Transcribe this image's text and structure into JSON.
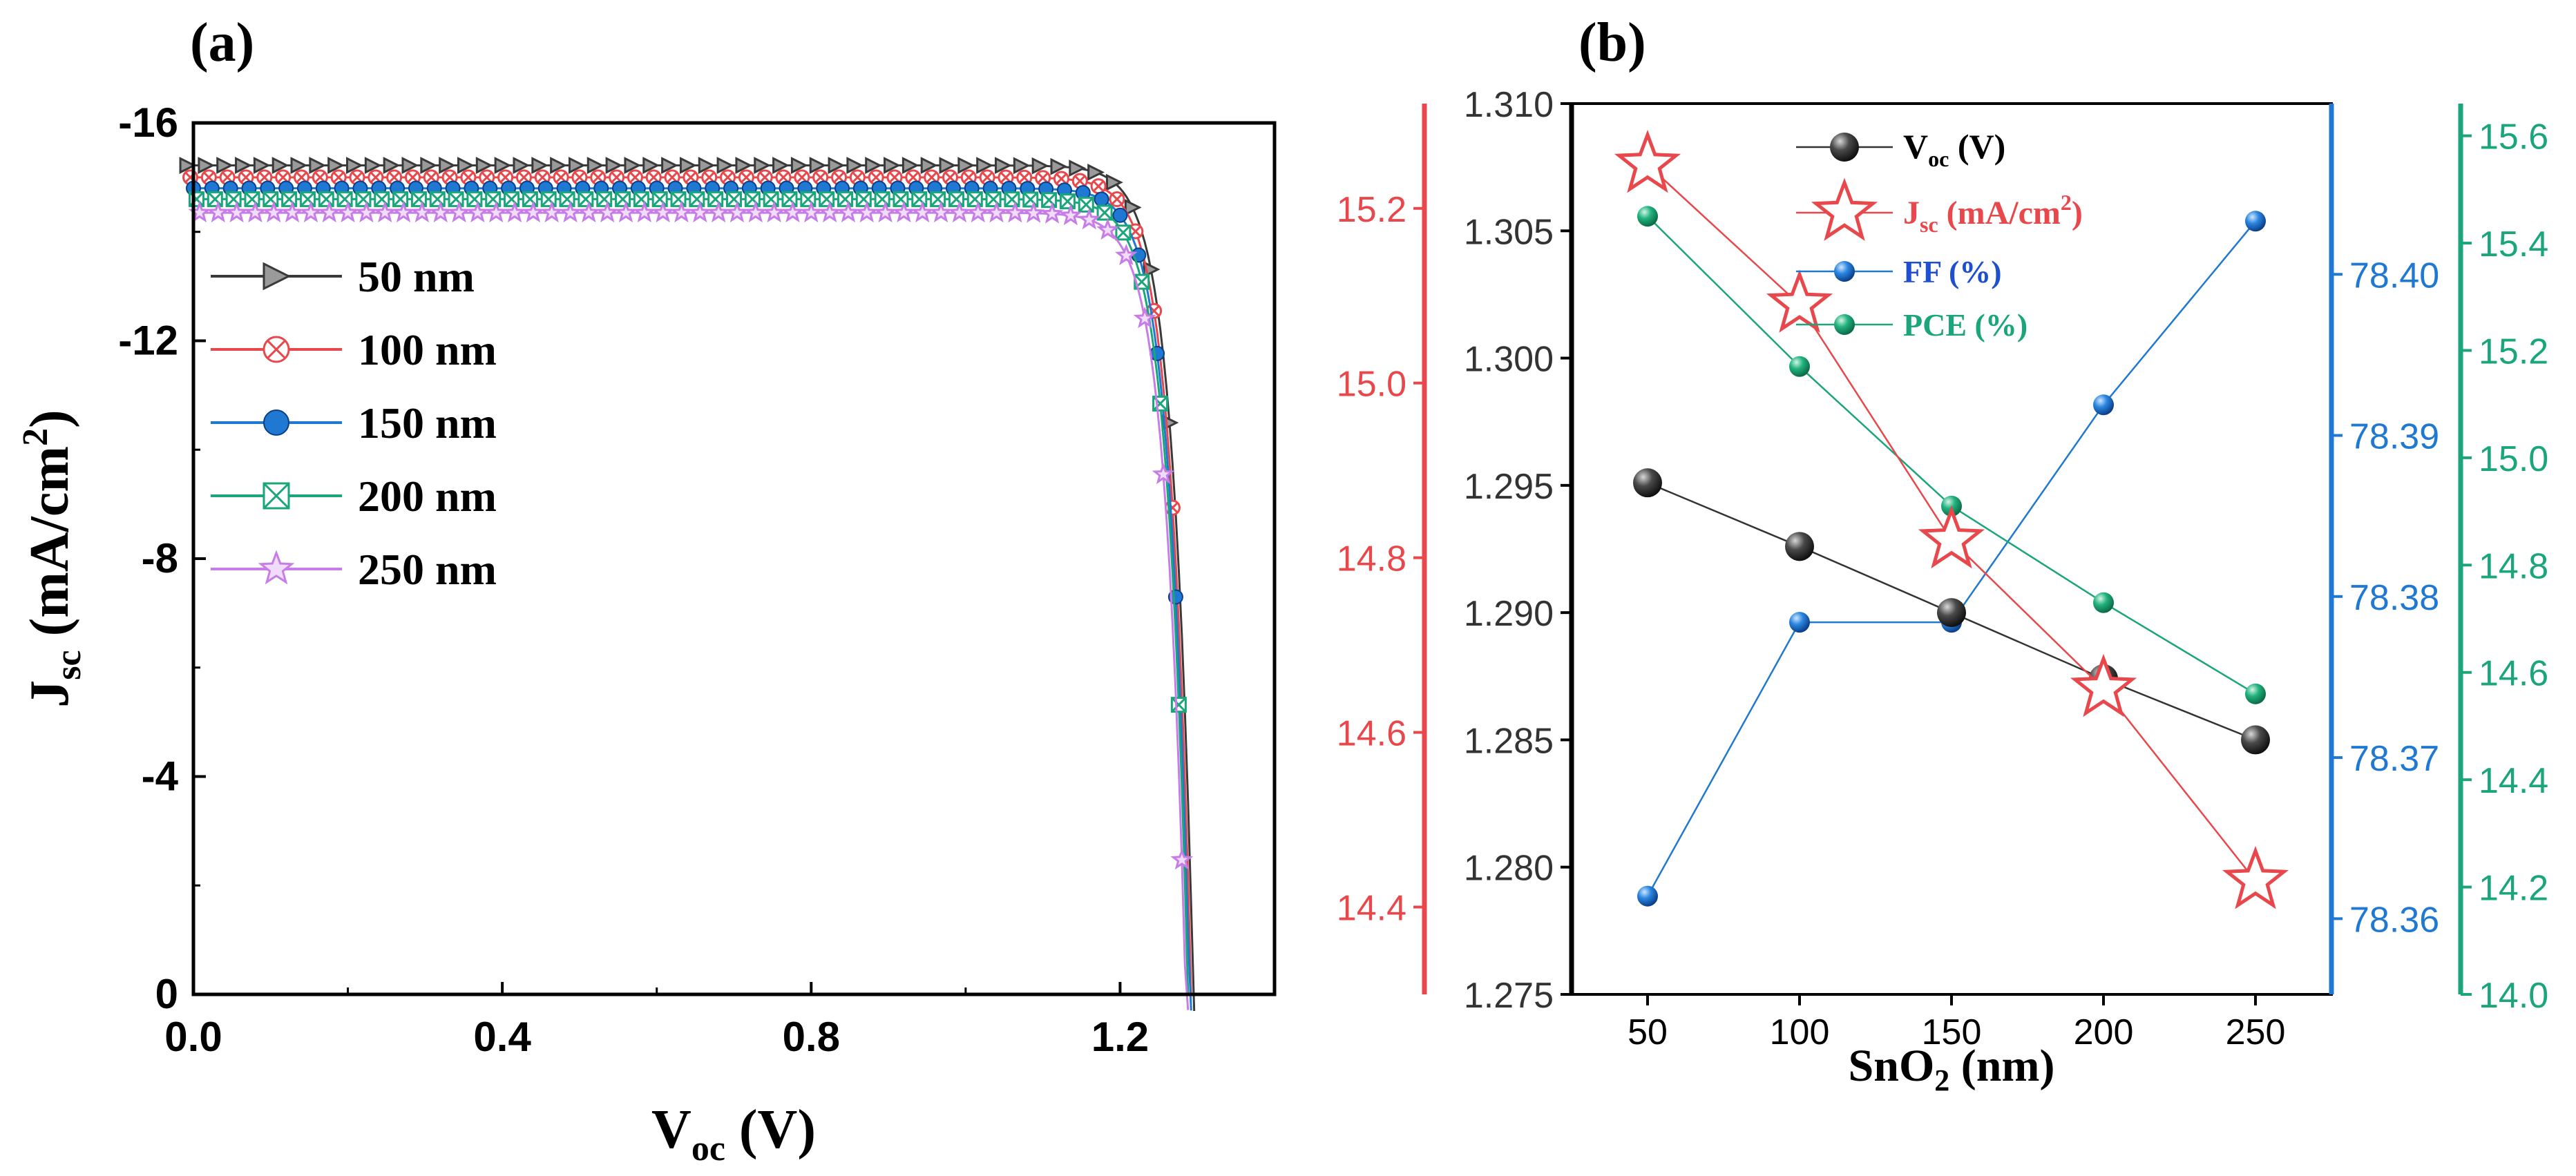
{
  "panel_a": {
    "label": "(a)",
    "chart_data": {
      "type": "line",
      "title": "",
      "xlabel_main": "V",
      "xlabel_sub": "oc",
      "xlabel_tail": " (V)",
      "ylabel_main": "J",
      "ylabel_sub": "sc",
      "ylabel_tail": " (mA/cm",
      "ylabel_sup": "2",
      "ylabel_close": ")",
      "xlim": [
        0.0,
        1.4
      ],
      "ylim": [
        0,
        -16
      ],
      "y_inverted": true,
      "x_ticks": [
        "0.0",
        "0.4",
        "0.8",
        "1.2"
      ],
      "y_ticks": [
        "0",
        "-4",
        "-8",
        "-12",
        "-16"
      ],
      "legend_position": "left",
      "series": [
        {
          "name": "50 nm",
          "color": "#3a3a3a",
          "marker": "triangle-right",
          "jsc": -15.22,
          "voc": 1.295
        },
        {
          "name": "100 nm",
          "color": "#e8474b",
          "marker": "x-circle",
          "jsc": -15.0,
          "voc": 1.292
        },
        {
          "name": "150 nm",
          "color": "#1f78d1",
          "marker": "circle",
          "jsc": -14.8,
          "voc": 1.29
        },
        {
          "name": "200 nm",
          "color": "#1aa57a",
          "marker": "x-square",
          "jsc": -14.6,
          "voc": 1.288
        },
        {
          "name": "250 nm",
          "color": "#c77ce8",
          "marker": "star",
          "jsc": -14.35,
          "voc": 1.285
        }
      ]
    }
  },
  "panel_b": {
    "label": "(b)",
    "chart_data": {
      "type": "line",
      "title": "",
      "xlabel_main": "SnO",
      "xlabel_sub": "2",
      "xlabel_tail": " (nm)",
      "categories": [
        50,
        100,
        150,
        200,
        250
      ],
      "x_ticks": [
        "50",
        "100",
        "150",
        "200",
        "250"
      ],
      "xlim": [
        25,
        275
      ],
      "legend_position": "top-center",
      "axes": [
        {
          "id": "voc",
          "side": "left-inner",
          "color": "#333333",
          "ylim": [
            1.275,
            1.31
          ],
          "ticks": [
            "1.275",
            "1.280",
            "1.285",
            "1.290",
            "1.295",
            "1.300",
            "1.305",
            "1.310"
          ]
        },
        {
          "id": "jsc",
          "side": "left-outer",
          "color": "#e8474b",
          "ylim": [
            14.3,
            15.32
          ],
          "ticks": [
            "14.4",
            "14.6",
            "14.8",
            "15.0",
            "15.2"
          ]
        },
        {
          "id": "ff",
          "side": "right-inner",
          "color": "#1f78d1",
          "ylim": [
            78.3553,
            78.4106
          ],
          "ticks": [
            "78.36",
            "78.37",
            "78.38",
            "78.39",
            "78.40"
          ]
        },
        {
          "id": "pce",
          "side": "right-outer",
          "color": "#1aa57a",
          "ylim": [
            14.0,
            15.66
          ],
          "ticks": [
            "14.0",
            "14.2",
            "14.4",
            "14.6",
            "14.8",
            "15.0",
            "15.2",
            "15.4",
            "15.6"
          ]
        }
      ],
      "series": [
        {
          "axis": "voc",
          "name_main": "V",
          "name_sub": "oc",
          "name_tail": " (V)",
          "name_sup": "",
          "name_close": "",
          "color": "#333333",
          "marker": "ball-dark",
          "values": [
            1.2951,
            1.2926,
            1.29,
            1.2874,
            1.285
          ]
        },
        {
          "axis": "jsc",
          "name_main": "J",
          "name_sub": "sc",
          "name_tail": " (mA/cm",
          "name_sup": "2",
          "name_close": ")",
          "color": "#e8474b",
          "marker": "star-outline",
          "values": [
            15.25,
            15.09,
            14.82,
            14.65,
            14.43
          ]
        },
        {
          "axis": "ff",
          "name_main": "FF (%)",
          "name_sub": "",
          "name_tail": "",
          "name_sup": "",
          "name_close": "",
          "color": "#1f78d1",
          "marker": "ball-blue",
          "values": [
            78.3614,
            78.3784,
            78.3784,
            78.3919,
            78.4033
          ]
        },
        {
          "axis": "pce",
          "name_main": "PCE (%)",
          "name_sub": "",
          "name_tail": "",
          "name_sup": "",
          "name_close": "",
          "color": "#1aa57a",
          "marker": "ball-green",
          "values": [
            15.45,
            15.17,
            14.91,
            14.73,
            14.56
          ]
        }
      ]
    }
  }
}
